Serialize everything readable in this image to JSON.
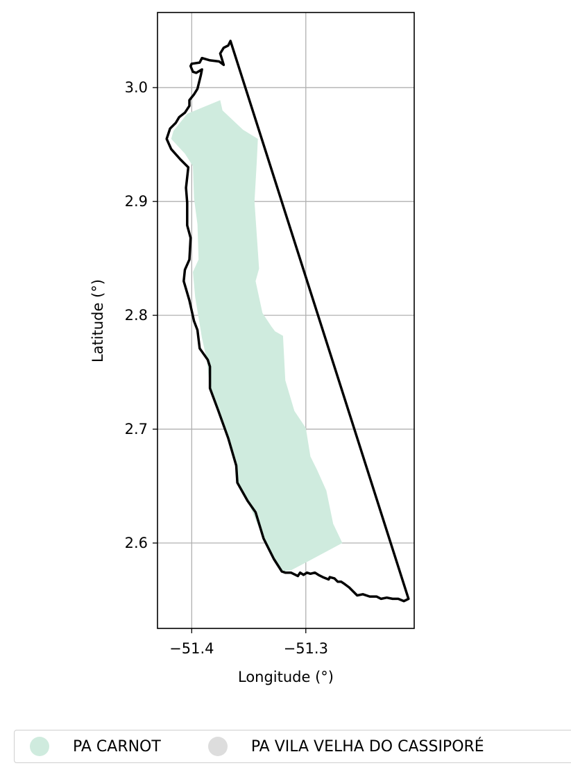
{
  "chart_data": {
    "type": "map",
    "xlabel": "Longitude (°)",
    "ylabel": "Latitude (°)",
    "xlim": [
      -51.43,
      -51.205
    ],
    "ylim": [
      2.525,
      3.066
    ],
    "x_ticks": [
      -51.4,
      -51.3
    ],
    "x_tick_labels": [
      "−51.4",
      "−51.3"
    ],
    "y_ticks": [
      2.6,
      2.7,
      2.8,
      2.9,
      3.0
    ],
    "y_tick_labels": [
      "2.6",
      "2.7",
      "2.8",
      "2.9",
      "3.0"
    ],
    "grid": true,
    "legend_placement": "bottom",
    "series": [
      {
        "name": "PA CARNOT",
        "color": "#cfebde",
        "style": "filled-polygon",
        "coords": [
          [
            -51.375,
            2.989
          ],
          [
            -51.373,
            2.98
          ],
          [
            -51.355,
            2.963
          ],
          [
            -51.342,
            2.955
          ],
          [
            -51.343,
            2.935
          ],
          [
            -51.345,
            2.9
          ],
          [
            -51.341,
            2.841
          ],
          [
            -51.344,
            2.83
          ],
          [
            -51.338,
            2.802
          ],
          [
            -51.33,
            2.79
          ],
          [
            -51.327,
            2.786
          ],
          [
            -51.32,
            2.782
          ],
          [
            -51.318,
            2.743
          ],
          [
            -51.31,
            2.716
          ],
          [
            -51.3,
            2.701
          ],
          [
            -51.296,
            2.676
          ],
          [
            -51.29,
            2.664
          ],
          [
            -51.282,
            2.646
          ],
          [
            -51.276,
            2.617
          ],
          [
            -51.268,
            2.6
          ],
          [
            -51.296,
            2.585
          ],
          [
            -51.313,
            2.576
          ],
          [
            -51.321,
            2.575
          ],
          [
            -51.328,
            2.586
          ],
          [
            -51.337,
            2.604
          ],
          [
            -51.351,
            2.637
          ],
          [
            -51.36,
            2.653
          ],
          [
            -51.362,
            2.668
          ],
          [
            -51.369,
            2.695
          ],
          [
            -51.384,
            2.736
          ],
          [
            -51.387,
            2.762
          ],
          [
            -51.391,
            2.78
          ],
          [
            -51.397,
            2.816
          ],
          [
            -51.399,
            2.838
          ],
          [
            -51.394,
            2.849
          ],
          [
            -51.395,
            2.88
          ],
          [
            -51.398,
            2.903
          ],
          [
            -51.399,
            2.931
          ],
          [
            -51.406,
            2.942
          ],
          [
            -51.418,
            2.955
          ],
          [
            -51.416,
            2.962
          ],
          [
            -51.404,
            2.977
          ]
        ]
      },
      {
        "name": "PA VILA VELHA DO CASSIPORÉ",
        "color": "#000000",
        "legend_color": "#dddddd",
        "style": "outline",
        "coords": [
          [
            -51.366,
            3.041
          ],
          [
            -51.21,
            2.551
          ],
          [
            -51.214,
            2.549
          ],
          [
            -51.219,
            2.551
          ],
          [
            -51.224,
            2.551
          ],
          [
            -51.229,
            2.552
          ],
          [
            -51.234,
            2.551
          ],
          [
            -51.238,
            2.553
          ],
          [
            -51.244,
            2.553
          ],
          [
            -51.25,
            2.555
          ],
          [
            -51.255,
            2.554
          ],
          [
            -51.258,
            2.557
          ],
          [
            -51.262,
            2.561
          ],
          [
            -51.266,
            2.564
          ],
          [
            -51.269,
            2.566
          ],
          [
            -51.272,
            2.566
          ],
          [
            -51.275,
            2.569
          ],
          [
            -51.279,
            2.57
          ],
          [
            -51.28,
            2.568
          ],
          [
            -51.285,
            2.57
          ],
          [
            -51.289,
            2.572
          ],
          [
            -51.292,
            2.574
          ],
          [
            -51.296,
            2.573
          ],
          [
            -51.299,
            2.574
          ],
          [
            -51.302,
            2.572
          ],
          [
            -51.305,
            2.574
          ],
          [
            -51.307,
            2.571
          ],
          [
            -51.313,
            2.574
          ],
          [
            -51.318,
            2.574
          ],
          [
            -51.321,
            2.575
          ],
          [
            -51.328,
            2.586
          ],
          [
            -51.337,
            2.604
          ],
          [
            -51.344,
            2.627
          ],
          [
            -51.351,
            2.637
          ],
          [
            -51.36,
            2.653
          ],
          [
            -51.361,
            2.668
          ],
          [
            -51.368,
            2.692
          ],
          [
            -51.377,
            2.717
          ],
          [
            -51.384,
            2.736
          ],
          [
            -51.384,
            2.755
          ],
          [
            -51.386,
            2.761
          ],
          [
            -51.393,
            2.771
          ],
          [
            -51.395,
            2.787
          ],
          [
            -51.398,
            2.795
          ],
          [
            -51.402,
            2.813
          ],
          [
            -51.407,
            2.83
          ],
          [
            -51.406,
            2.84
          ],
          [
            -51.402,
            2.849
          ],
          [
            -51.401,
            2.868
          ],
          [
            -51.404,
            2.879
          ],
          [
            -51.404,
            2.899
          ],
          [
            -51.405,
            2.912
          ],
          [
            -51.403,
            2.93
          ],
          [
            -51.41,
            2.937
          ],
          [
            -51.418,
            2.946
          ],
          [
            -51.422,
            2.955
          ],
          [
            -51.419,
            2.964
          ],
          [
            -51.414,
            2.969
          ],
          [
            -51.411,
            2.974
          ],
          [
            -51.406,
            2.978
          ],
          [
            -51.402,
            2.984
          ],
          [
            -51.402,
            2.989
          ],
          [
            -51.398,
            2.994
          ],
          [
            -51.395,
            2.999
          ],
          [
            -51.392,
            3.011
          ],
          [
            -51.391,
            3.016
          ],
          [
            -51.396,
            3.013
          ],
          [
            -51.399,
            3.014
          ],
          [
            -51.401,
            3.019
          ],
          [
            -51.4,
            3.021
          ],
          [
            -51.393,
            3.022
          ],
          [
            -51.391,
            3.026
          ],
          [
            -51.384,
            3.024
          ],
          [
            -51.376,
            3.023
          ],
          [
            -51.372,
            3.02
          ],
          [
            -51.375,
            3.03
          ],
          [
            -51.372,
            3.035
          ],
          [
            -51.368,
            3.037
          ]
        ]
      }
    ]
  }
}
